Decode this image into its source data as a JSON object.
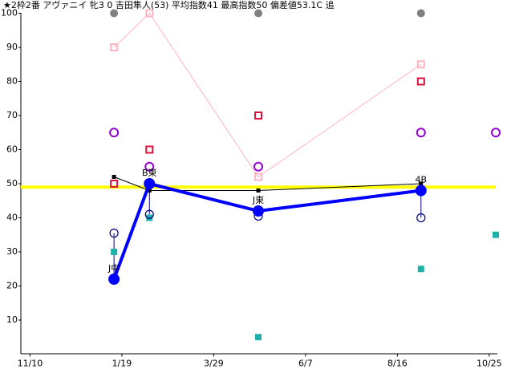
{
  "chart_data": {
    "type": "line",
    "title": "★2枠2番 アヴァニイ 牝3 0 吉田隼人(53) 平均指数41 最高指数50 偏差値53.1C 追",
    "xlim": [
      -7,
      355
    ],
    "ylim": [
      0,
      100
    ],
    "xticks": [
      {
        "value": 0,
        "label": "11/10"
      },
      {
        "value": 70,
        "label": "1/19"
      },
      {
        "value": 140,
        "label": "3/29"
      },
      {
        "value": 210,
        "label": "6/7"
      },
      {
        "value": 280,
        "label": "8/16"
      },
      {
        "value": 350,
        "label": "10/25"
      }
    ],
    "yticks": [
      10,
      20,
      30,
      40,
      50,
      60,
      70,
      80,
      90,
      100
    ],
    "hline": {
      "value": 49,
      "color": "#ffff00"
    },
    "series": [
      {
        "color": "#808080",
        "line": false,
        "marker": "circle-filled",
        "x": [
          64,
          174,
          298
        ],
        "values": [
          100,
          100,
          100
        ]
      },
      {
        "color": "#ffb6c1",
        "line": true,
        "marker": "square-open",
        "x": [
          64,
          91,
          174,
          298
        ],
        "values": [
          90,
          100,
          52,
          85
        ]
      },
      {
        "color": "#dc143c",
        "line": false,
        "marker": "square-open",
        "x": [
          64,
          91,
          174,
          298
        ],
        "values": [
          50,
          60,
          70,
          80
        ]
      },
      {
        "color": "#9400d3",
        "line": false,
        "marker": "circle-open",
        "x": [
          64,
          91,
          174,
          298,
          355
        ],
        "values": [
          65,
          55,
          55,
          65,
          65
        ]
      },
      {
        "color": "#20b2aa",
        "line": false,
        "marker": "square-filled",
        "x": [
          64,
          91,
          174,
          298,
          355
        ],
        "values": [
          30,
          40,
          5,
          25,
          35
        ]
      },
      {
        "color": "#000000",
        "line": true,
        "marker": "square-small",
        "x": [
          64,
          91,
          174,
          298
        ],
        "values": [
          52,
          48,
          48,
          50
        ]
      },
      {
        "color": "#000080",
        "line": false,
        "marker": "circle-open",
        "x": [
          64,
          91,
          174,
          298
        ],
        "values": [
          35.5,
          41,
          40.5,
          40
        ]
      },
      {
        "color": "#0000ff",
        "line": true,
        "width": 4,
        "marker": "circle-big",
        "x": [
          64,
          91,
          174,
          298
        ],
        "values": [
          22,
          50,
          42,
          48
        ],
        "point_labels": [
          "J中",
          "B東",
          "J東",
          "4B"
        ]
      }
    ]
  }
}
